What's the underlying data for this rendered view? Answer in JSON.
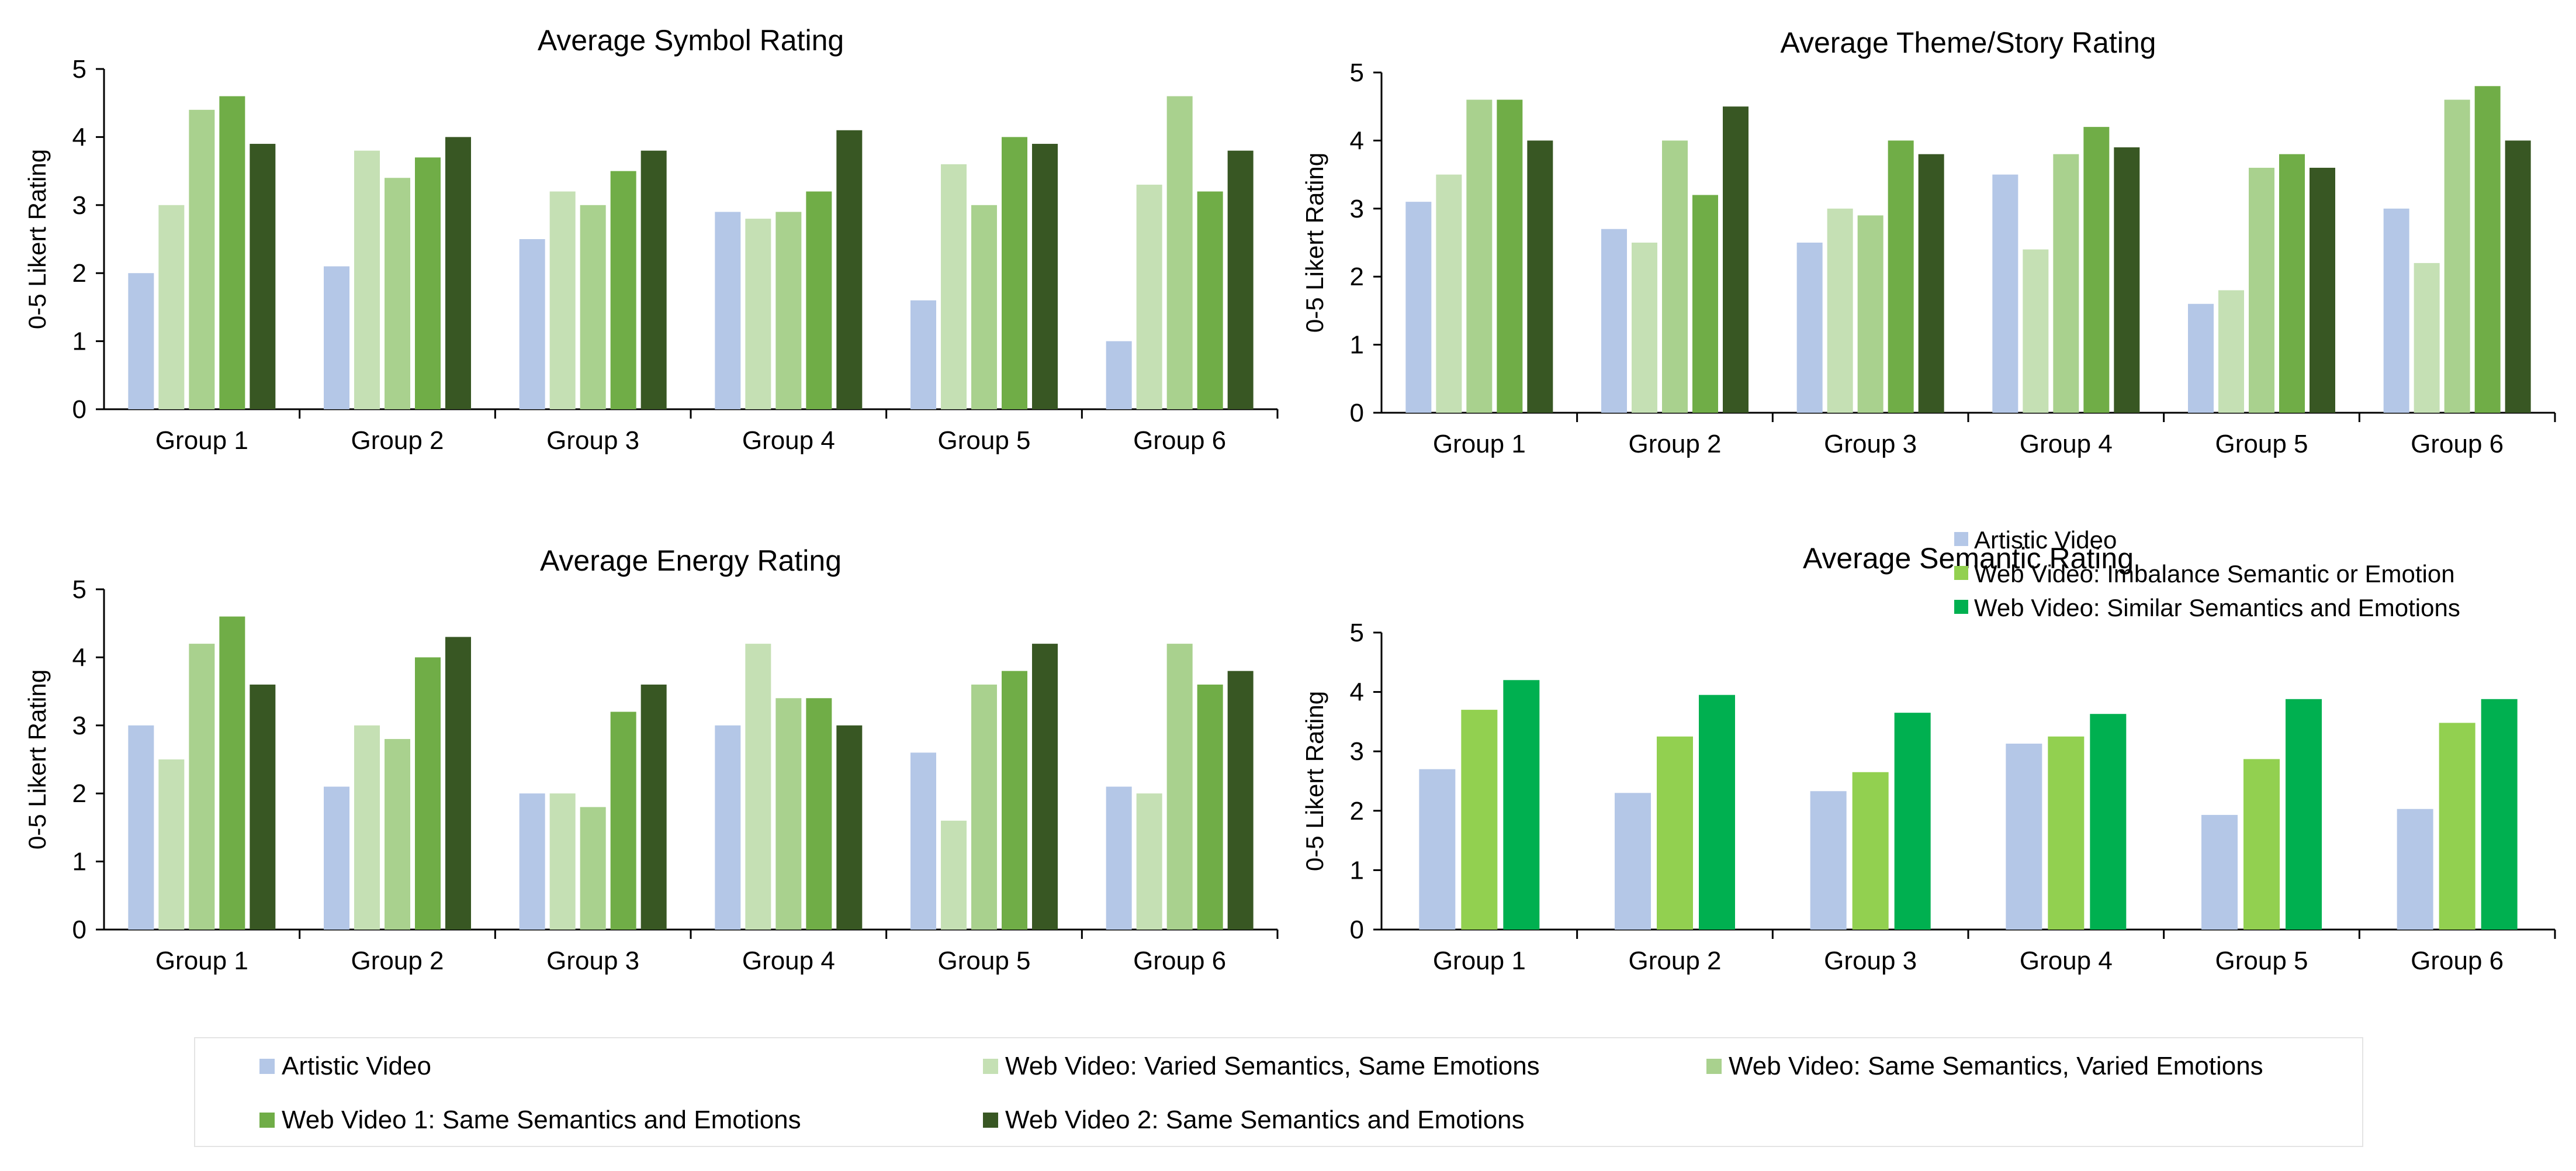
{
  "colors": {
    "artistic": "#b4c7e7",
    "varied_sem": "#c5e0b4",
    "varied_emo": "#a9d18e",
    "same1": "#70ad47",
    "same2": "#385723",
    "imbalance": "#92d050",
    "similar": "#00b050"
  },
  "chart_data": [
    {
      "type": "bar",
      "title": "Average Symbol Rating",
      "ylabel": "0-5 Likert Rating",
      "ylim": [
        0,
        5
      ],
      "yticks": [
        "0",
        "1",
        "2",
        "3",
        "4",
        "5"
      ],
      "categories": [
        "Group 1",
        "Group 2",
        "Group 3",
        "Group 4",
        "Group 5",
        "Group 6"
      ],
      "series": [
        {
          "name": "Artistic Video",
          "color_key": "artistic",
          "values": [
            2.0,
            2.1,
            2.5,
            2.9,
            1.6,
            1.0
          ]
        },
        {
          "name": "Web Video: Varied Semantics, Same Emotions",
          "color_key": "varied_sem",
          "values": [
            3.0,
            3.8,
            3.2,
            2.8,
            3.6,
            3.3
          ]
        },
        {
          "name": "Web Video: Same Semantics, Varied Emotions",
          "color_key": "varied_emo",
          "values": [
            4.4,
            3.4,
            3.0,
            2.9,
            3.0,
            4.6
          ]
        },
        {
          "name": "Web Video 1: Same Semantics and Emotions",
          "color_key": "same1",
          "values": [
            4.6,
            3.7,
            3.5,
            3.2,
            4.0,
            3.2
          ]
        },
        {
          "name": "Web Video 2: Same Semantics and Emotions",
          "color_key": "same2",
          "values": [
            3.9,
            4.0,
            3.8,
            4.1,
            3.9,
            3.8
          ]
        }
      ]
    },
    {
      "type": "bar",
      "title": "Average Theme/Story Rating",
      "ylabel": "0-5 Likert Rating",
      "ylim": [
        0,
        5
      ],
      "yticks": [
        "0",
        "1",
        "2",
        "3",
        "4",
        "5"
      ],
      "categories": [
        "Group 1",
        "Group 2",
        "Group 3",
        "Group 4",
        "Group 5",
        "Group 6"
      ],
      "series": [
        {
          "name": "Artistic Video",
          "color_key": "artistic",
          "values": [
            3.1,
            2.7,
            2.5,
            3.5,
            1.6,
            3.0
          ]
        },
        {
          "name": "Web Video: Varied Semantics, Same Emotions",
          "color_key": "varied_sem",
          "values": [
            3.5,
            2.5,
            3.0,
            2.4,
            1.8,
            2.2
          ]
        },
        {
          "name": "Web Video: Same Semantics, Varied Emotions",
          "color_key": "varied_emo",
          "values": [
            4.6,
            4.0,
            2.9,
            3.8,
            3.6,
            4.6
          ]
        },
        {
          "name": "Web Video 1: Same Semantics and Emotions",
          "color_key": "same1",
          "values": [
            4.6,
            3.2,
            4.0,
            4.2,
            3.8,
            4.8
          ]
        },
        {
          "name": "Web Video 2: Same Semantics and Emotions",
          "color_key": "same2",
          "values": [
            4.0,
            4.5,
            3.8,
            3.9,
            3.6,
            4.0
          ]
        }
      ]
    },
    {
      "type": "bar",
      "title": "Average Energy Rating",
      "ylabel": "0-5 Likert Rating",
      "ylim": [
        0,
        5
      ],
      "yticks": [
        "0",
        "1",
        "2",
        "3",
        "4",
        "5"
      ],
      "categories": [
        "Group 1",
        "Group 2",
        "Group 3",
        "Group 4",
        "Group 5",
        "Group 6"
      ],
      "series": [
        {
          "name": "Artistic Video",
          "color_key": "artistic",
          "values": [
            3.0,
            2.1,
            2.0,
            3.0,
            2.6,
            2.1
          ]
        },
        {
          "name": "Web Video: Varied Semantics, Same Emotions",
          "color_key": "varied_sem",
          "values": [
            2.5,
            3.0,
            2.0,
            4.2,
            1.6,
            2.0
          ]
        },
        {
          "name": "Web Video: Same Semantics, Varied Emotions",
          "color_key": "varied_emo",
          "values": [
            4.2,
            2.8,
            1.8,
            3.4,
            3.6,
            4.2
          ]
        },
        {
          "name": "Web Video 1: Same Semantics and Emotions",
          "color_key": "same1",
          "values": [
            4.6,
            4.0,
            3.2,
            3.4,
            3.8,
            3.6
          ]
        },
        {
          "name": "Web Video 2: Same Semantics and Emotions",
          "color_key": "same2",
          "values": [
            3.6,
            4.3,
            3.6,
            3.0,
            4.2,
            3.8
          ]
        }
      ]
    },
    {
      "type": "bar",
      "title": "Average Semantic Rating",
      "ylabel": "0-5 Likert Rating",
      "ylim": [
        0,
        5
      ],
      "yticks": [
        "0",
        "1",
        "2",
        "3",
        "4",
        "5"
      ],
      "categories": [
        "Group 1",
        "Group 2",
        "Group 3",
        "Group 4",
        "Group 5",
        "Group 6"
      ],
      "legend": "top-right",
      "series": [
        {
          "name": "Artistic Video",
          "color_key": "artistic",
          "values": [
            2.7,
            2.3,
            2.33,
            3.13,
            1.93,
            2.03
          ]
        },
        {
          "name": "Web Video: Imbalance Semantic or Emotion",
          "color_key": "imbalance",
          "values": [
            3.7,
            3.25,
            2.65,
            3.25,
            2.87,
            3.48
          ]
        },
        {
          "name": "Web Video: Similar Semantics and Emotions",
          "color_key": "similar",
          "values": [
            4.2,
            3.95,
            3.65,
            3.63,
            3.88,
            3.88
          ]
        }
      ]
    }
  ],
  "legend": {
    "items": [
      {
        "label": "Artistic Video",
        "color_key": "artistic"
      },
      {
        "label": "Web Video: Varied Semantics, Same Emotions",
        "color_key": "varied_sem"
      },
      {
        "label": "Web Video: Same Semantics, Varied Emotions",
        "color_key": "varied_emo"
      },
      {
        "label": "Web Video 1: Same Semantics and Emotions",
        "color_key": "same1"
      },
      {
        "label": "Web Video 2: Same Semantics and Emotions",
        "color_key": "same2"
      }
    ]
  }
}
